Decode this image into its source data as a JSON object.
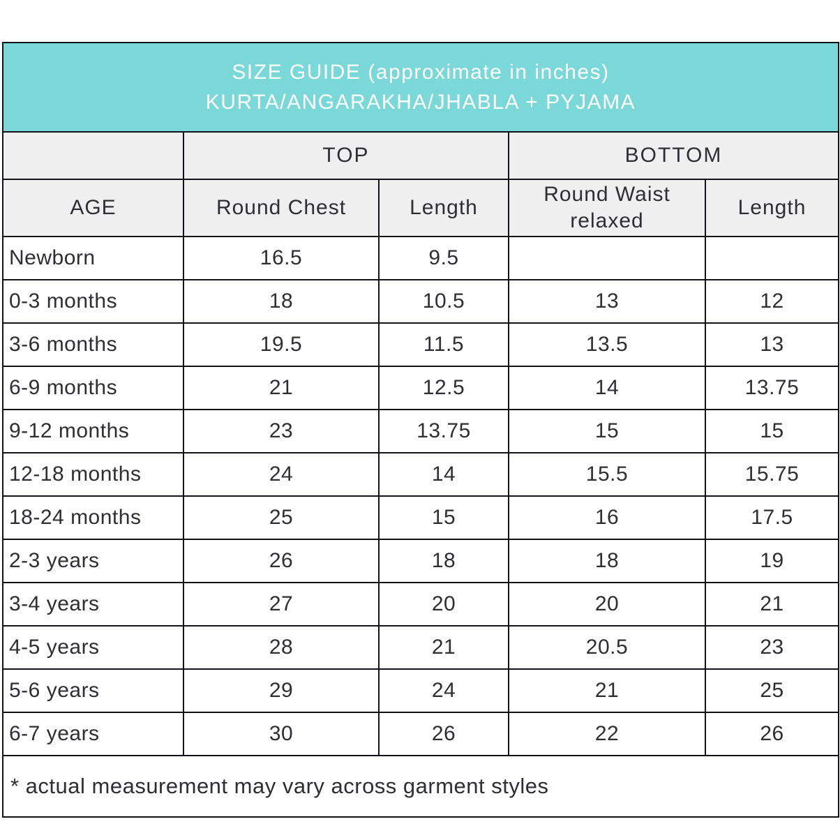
{
  "banner": {
    "title_line1": "SIZE GUIDE (approximate in inches)",
    "title_line2": "KURTA/ANGARAKHA/JHABLA + PYJAMA",
    "bg_color": "#7bd8d8",
    "text_color": "#ffffff"
  },
  "table": {
    "group_headers": {
      "top": "TOP",
      "bottom": "BOTTOM"
    },
    "columns": [
      "AGE",
      "Round Chest",
      "Length",
      "Round Waist relaxed",
      "Length"
    ],
    "rows": [
      {
        "age": "Newborn",
        "chest": "16.5",
        "top_len": "9.5",
        "waist": "",
        "bottom_len": ""
      },
      {
        "age": "0-3 months",
        "chest": "18",
        "top_len": "10.5",
        "waist": "13",
        "bottom_len": "12"
      },
      {
        "age": "3-6 months",
        "chest": "19.5",
        "top_len": "11.5",
        "waist": "13.5",
        "bottom_len": "13"
      },
      {
        "age": "6-9 months",
        "chest": "21",
        "top_len": "12.5",
        "waist": "14",
        "bottom_len": "13.75"
      },
      {
        "age": "9-12 months",
        "chest": "23",
        "top_len": "13.75",
        "waist": "15",
        "bottom_len": "15"
      },
      {
        "age": "12-18 months",
        "chest": "24",
        "top_len": "14",
        "waist": "15.5",
        "bottom_len": "15.75"
      },
      {
        "age": "18-24 months",
        "chest": "25",
        "top_len": "15",
        "waist": "16",
        "bottom_len": "17.5"
      },
      {
        "age": "2-3 years",
        "chest": "26",
        "top_len": "18",
        "waist": "18",
        "bottom_len": "19"
      },
      {
        "age": "3-4 years",
        "chest": "27",
        "top_len": "20",
        "waist": "20",
        "bottom_len": "21"
      },
      {
        "age": "4-5 years",
        "chest": "28",
        "top_len": "21",
        "waist": "20.5",
        "bottom_len": "23"
      },
      {
        "age": "5-6 years",
        "chest": "29",
        "top_len": "24",
        "waist": "21",
        "bottom_len": "25"
      },
      {
        "age": "6-7 years",
        "chest": "30",
        "top_len": "26",
        "waist": "22",
        "bottom_len": "26"
      }
    ]
  },
  "footnote": "* actual measurement may vary across garment styles",
  "colors": {
    "accent_teal": "#7bd8d8",
    "header_gray": "#efefef",
    "border": "#121218",
    "text": "#2e2e33"
  }
}
